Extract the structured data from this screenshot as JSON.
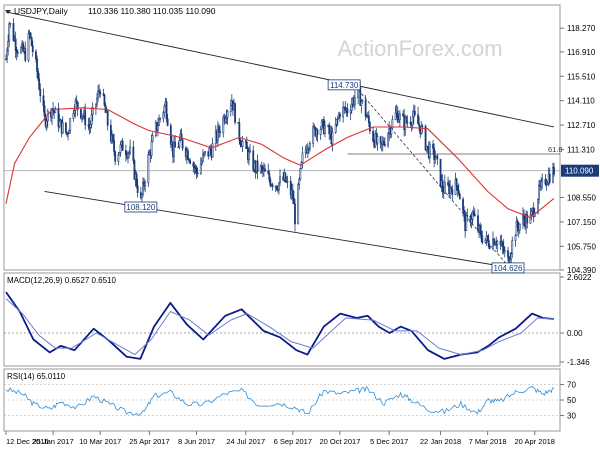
{
  "header": {
    "symbol_line": "USDJPY,Daily",
    "ohlc": "110.336 110.380 110.035 110.090"
  },
  "watermark": "ActionForex.com",
  "colors": {
    "candle": "#1a3a78",
    "ma": "#e03030",
    "channel": "#222222",
    "macd": "#0a1a8a",
    "macd_signal": "#6a7fd0",
    "rsi": "#2f8fd8",
    "grid": "#c8c8c8",
    "last_price_box": "#1a3a78"
  },
  "chart_data": [
    {
      "type": "candlestick",
      "name": "price-panel",
      "x_range": [
        "2016-12-12",
        "2018-05-08"
      ],
      "ylim": [
        104.39,
        119.6
      ],
      "y_ticks": [
        "118.270",
        "116.910",
        "115.510",
        "114.110",
        "112.710",
        "111.310",
        "110.090",
        "108.550",
        "107.150",
        "105.750",
        "104.390"
      ],
      "x_ticks": [
        "12 Dec 2016",
        "25 Jan 2017",
        "10 Mar 2017",
        "25 Apr 2017",
        "8 Jun 2017",
        "24 Jul 2017",
        "6 Sep 2017",
        "20 Oct 2017",
        "5 Dec 2017",
        "22 Jan 2018",
        "7 Mar 2018",
        "20 Apr 2018"
      ],
      "last_price": "110.090",
      "fib_label": "61.8",
      "fib_level": 111.05,
      "annotations": [
        {
          "text": "108.120",
          "date": "2017-04-17",
          "value": 108.12
        },
        {
          "text": "114.730",
          "date": "2017-11-06",
          "value": 114.73
        },
        {
          "text": "104.626",
          "date": "2018-03-26",
          "value": 104.626
        }
      ],
      "channel_upper": [
        [
          "2016-12-12",
          119.2
        ],
        [
          "2018-05-08",
          112.6
        ]
      ],
      "channel_lower": [
        [
          "2017-01-17",
          108.9
        ],
        [
          "2018-04-10",
          104.4
        ]
      ],
      "dashed_line": [
        [
          "2017-11-06",
          114.73
        ],
        [
          "2018-03-26",
          104.626
        ]
      ],
      "price_path": [
        [
          "2016-12-12",
          116.5
        ],
        [
          "2016-12-15",
          118.6
        ],
        [
          "2016-12-22",
          117.2
        ],
        [
          "2016-12-30",
          116.8
        ],
        [
          "2017-01-03",
          117.9
        ],
        [
          "2017-01-10",
          115.8
        ],
        [
          "2017-01-17",
          113.0
        ],
        [
          "2017-01-24",
          113.7
        ],
        [
          "2017-01-31",
          112.8
        ],
        [
          "2017-02-07",
          112.2
        ],
        [
          "2017-02-14",
          114.0
        ],
        [
          "2017-02-21",
          113.4
        ],
        [
          "2017-02-28",
          112.6
        ],
        [
          "2017-03-07",
          114.2
        ],
        [
          "2017-03-10",
          114.9
        ],
        [
          "2017-03-17",
          112.8
        ],
        [
          "2017-03-24",
          111.0
        ],
        [
          "2017-03-31",
          111.5
        ],
        [
          "2017-04-07",
          111.1
        ],
        [
          "2017-04-17",
          108.3
        ],
        [
          "2017-04-24",
          110.8
        ],
        [
          "2017-05-01",
          112.5
        ],
        [
          "2017-05-10",
          113.9
        ],
        [
          "2017-05-17",
          111.2
        ],
        [
          "2017-05-24",
          111.8
        ],
        [
          "2017-06-01",
          111.0
        ],
        [
          "2017-06-08",
          110.0
        ],
        [
          "2017-06-15",
          110.9
        ],
        [
          "2017-06-22",
          111.3
        ],
        [
          "2017-06-29",
          112.4
        ],
        [
          "2017-07-06",
          113.6
        ],
        [
          "2017-07-11",
          114.2
        ],
        [
          "2017-07-18",
          112.1
        ],
        [
          "2017-07-25",
          111.2
        ],
        [
          "2017-08-01",
          110.3
        ],
        [
          "2017-08-08",
          110.1
        ],
        [
          "2017-08-15",
          109.6
        ],
        [
          "2017-08-22",
          109.3
        ],
        [
          "2017-08-29",
          109.6
        ],
        [
          "2017-09-06",
          108.6
        ],
        [
          "2017-09-08",
          107.4
        ],
        [
          "2017-09-15",
          110.8
        ],
        [
          "2017-09-22",
          112.0
        ],
        [
          "2017-09-29",
          112.6
        ],
        [
          "2017-10-06",
          112.6
        ],
        [
          "2017-10-13",
          111.9
        ],
        [
          "2017-10-20",
          113.5
        ],
        [
          "2017-10-27",
          113.6
        ],
        [
          "2017-11-06",
          114.6
        ],
        [
          "2017-11-13",
          113.4
        ],
        [
          "2017-11-20",
          112.0
        ],
        [
          "2017-11-27",
          111.3
        ],
        [
          "2017-12-05",
          112.5
        ],
        [
          "2017-12-12",
          113.4
        ],
        [
          "2017-12-19",
          112.8
        ],
        [
          "2017-12-27",
          113.2
        ],
        [
          "2018-01-03",
          112.6
        ],
        [
          "2018-01-10",
          111.3
        ],
        [
          "2018-01-17",
          110.9
        ],
        [
          "2018-01-24",
          109.0
        ],
        [
          "2018-01-31",
          109.1
        ],
        [
          "2018-02-07",
          109.3
        ],
        [
          "2018-02-14",
          107.0
        ],
        [
          "2018-02-21",
          107.6
        ],
        [
          "2018-02-28",
          106.4
        ],
        [
          "2018-03-07",
          106.0
        ],
        [
          "2018-03-14",
          106.2
        ],
        [
          "2018-03-21",
          105.6
        ],
        [
          "2018-03-26",
          104.9
        ],
        [
          "2018-04-02",
          106.7
        ],
        [
          "2018-04-09",
          107.3
        ],
        [
          "2018-04-16",
          107.3
        ],
        [
          "2018-04-23",
          108.7
        ],
        [
          "2018-04-30",
          109.6
        ],
        [
          "2018-05-08",
          110.1
        ]
      ],
      "ma_path": [
        [
          "2016-12-12",
          108.2
        ],
        [
          "2016-12-20",
          110.5
        ],
        [
          "2017-01-03",
          112.0
        ],
        [
          "2017-01-24",
          113.6
        ],
        [
          "2017-02-21",
          113.7
        ],
        [
          "2017-03-17",
          113.6
        ],
        [
          "2017-04-10",
          112.8
        ],
        [
          "2017-04-24",
          112.4
        ],
        [
          "2017-05-24",
          112.0
        ],
        [
          "2017-06-22",
          111.4
        ],
        [
          "2017-07-18",
          112.0
        ],
        [
          "2017-08-08",
          111.6
        ],
        [
          "2017-08-29",
          110.8
        ],
        [
          "2017-09-13",
          110.4
        ],
        [
          "2017-10-06",
          111.3
        ],
        [
          "2017-10-27",
          112.0
        ],
        [
          "2017-11-20",
          112.6
        ],
        [
          "2017-12-19",
          112.6
        ],
        [
          "2018-01-10",
          112.5
        ],
        [
          "2018-02-07",
          110.8
        ],
        [
          "2018-03-07",
          108.9
        ],
        [
          "2018-03-26",
          107.9
        ],
        [
          "2018-04-16",
          107.4
        ],
        [
          "2018-05-08",
          108.5
        ]
      ]
    },
    {
      "type": "line",
      "name": "macd-panel",
      "indicator_label": "MACD(12,26,9) 0.6527 0.6510",
      "ylim": [
        -1.346,
        2.6022
      ],
      "y_ticks": [
        "2.6022",
        "0.00",
        "-1.346"
      ],
      "series": [
        {
          "values": [
            [
              0,
              1.9
            ],
            [
              0.025,
              1.0
            ],
            [
              0.05,
              -0.3
            ],
            [
              0.08,
              -0.9
            ],
            [
              0.1,
              -0.6
            ],
            [
              0.125,
              -0.8
            ],
            [
              0.16,
              0.2
            ],
            [
              0.19,
              -0.4
            ],
            [
              0.22,
              -1.1
            ],
            [
              0.245,
              -1.2
            ],
            [
              0.27,
              0.3
            ],
            [
              0.3,
              1.4
            ],
            [
              0.33,
              0.4
            ],
            [
              0.36,
              -0.3
            ],
            [
              0.4,
              0.8
            ],
            [
              0.43,
              1.1
            ],
            [
              0.47,
              0.1
            ],
            [
              0.5,
              -0.2
            ],
            [
              0.53,
              -0.8
            ],
            [
              0.55,
              -1.0
            ],
            [
              0.58,
              0.3
            ],
            [
              0.61,
              0.9
            ],
            [
              0.64,
              0.7
            ],
            [
              0.66,
              0.8
            ],
            [
              0.68,
              0.3
            ],
            [
              0.7,
              0.0
            ],
            [
              0.72,
              0.3
            ],
            [
              0.74,
              0.1
            ],
            [
              0.77,
              -0.8
            ],
            [
              0.8,
              -1.2
            ],
            [
              0.83,
              -1.0
            ],
            [
              0.86,
              -0.9
            ],
            [
              0.88,
              -0.6
            ],
            [
              0.9,
              -0.2
            ],
            [
              0.93,
              0.2
            ],
            [
              0.96,
              0.9
            ],
            [
              0.98,
              0.7
            ],
            [
              1,
              0.65
            ]
          ]
        },
        {
          "values": [
            [
              0,
              1.6
            ],
            [
              0.03,
              0.9
            ],
            [
              0.06,
              -0.1
            ],
            [
              0.09,
              -0.7
            ],
            [
              0.12,
              -0.7
            ],
            [
              0.165,
              0.0
            ],
            [
              0.2,
              -0.5
            ],
            [
              0.235,
              -1.0
            ],
            [
              0.265,
              -0.3
            ],
            [
              0.3,
              1.0
            ],
            [
              0.335,
              0.6
            ],
            [
              0.37,
              -0.1
            ],
            [
              0.41,
              0.6
            ],
            [
              0.44,
              0.9
            ],
            [
              0.48,
              0.3
            ],
            [
              0.52,
              -0.4
            ],
            [
              0.56,
              -0.7
            ],
            [
              0.59,
              0.0
            ],
            [
              0.62,
              0.7
            ],
            [
              0.67,
              0.6
            ],
            [
              0.71,
              0.1
            ],
            [
              0.75,
              0.1
            ],
            [
              0.79,
              -0.7
            ],
            [
              0.83,
              -1.0
            ],
            [
              0.87,
              -0.8
            ],
            [
              0.9,
              -0.4
            ],
            [
              0.94,
              0.0
            ],
            [
              0.97,
              0.7
            ],
            [
              1,
              0.65
            ]
          ]
        }
      ]
    },
    {
      "type": "line",
      "name": "rsi-panel",
      "indicator_label": "RSI(14) 65.0110",
      "ylim": [
        10,
        90
      ],
      "y_ticks": [
        "70",
        "50",
        "30"
      ],
      "series": [
        {
          "values": [
            [
              0,
              64
            ],
            [
              0.03,
              58
            ],
            [
              0.05,
              45
            ],
            [
              0.08,
              38
            ],
            [
              0.1,
              48
            ],
            [
              0.13,
              40
            ],
            [
              0.16,
              55
            ],
            [
              0.19,
              44
            ],
            [
              0.22,
              34
            ],
            [
              0.25,
              33
            ],
            [
              0.27,
              55
            ],
            [
              0.3,
              60
            ],
            [
              0.33,
              45
            ],
            [
              0.36,
              44
            ],
            [
              0.4,
              58
            ],
            [
              0.43,
              62
            ],
            [
              0.46,
              44
            ],
            [
              0.5,
              46
            ],
            [
              0.53,
              40
            ],
            [
              0.55,
              32
            ],
            [
              0.58,
              62
            ],
            [
              0.61,
              58
            ],
            [
              0.64,
              62
            ],
            [
              0.66,
              64
            ],
            [
              0.69,
              46
            ],
            [
              0.72,
              58
            ],
            [
              0.74,
              50
            ],
            [
              0.77,
              38
            ],
            [
              0.8,
              35
            ],
            [
              0.83,
              45
            ],
            [
              0.86,
              33
            ],
            [
              0.88,
              50
            ],
            [
              0.9,
              48
            ],
            [
              0.93,
              60
            ],
            [
              0.96,
              66
            ],
            [
              0.98,
              58
            ],
            [
              1,
              65
            ]
          ]
        }
      ]
    }
  ]
}
